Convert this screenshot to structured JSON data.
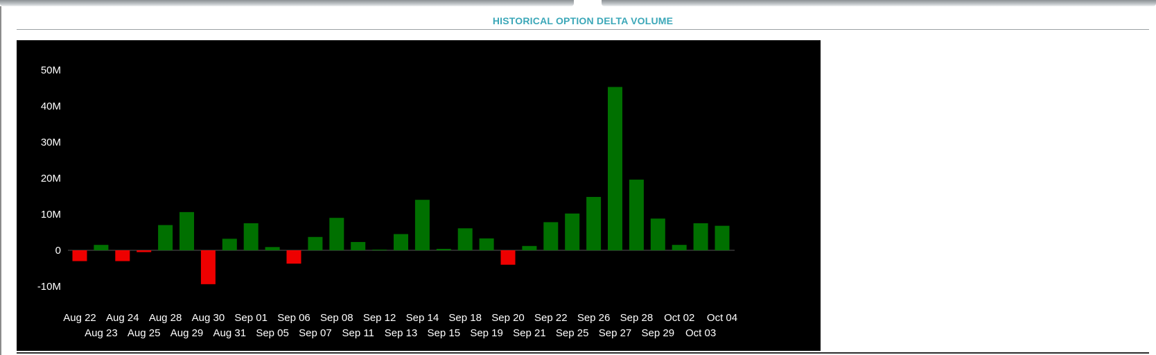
{
  "header": {
    "title": "HISTORICAL OPTION DELTA VOLUME"
  },
  "colors": {
    "positive": "#007000",
    "negative": "#ee0000",
    "background": "#000000",
    "title": "#3ba7b8"
  },
  "chart_data": {
    "type": "bar",
    "title": "",
    "xlabel": "",
    "ylabel": "",
    "ylim": [
      -10,
      50
    ],
    "yticks": [
      -10,
      0,
      10,
      20,
      30,
      40,
      50
    ],
    "ytick_labels": [
      "-10M",
      "0",
      "10M",
      "20M",
      "30M",
      "40M",
      "50M"
    ],
    "grid": false,
    "legend": "none",
    "categories": [
      "Aug 22",
      "Aug 23",
      "Aug 24",
      "Aug 25",
      "Aug 28",
      "Aug 29",
      "Aug 30",
      "Aug 31",
      "Sep 01",
      "Sep 05",
      "Sep 06",
      "Sep 07",
      "Sep 08",
      "Sep 11",
      "Sep 12",
      "Sep 13",
      "Sep 14",
      "Sep 15",
      "Sep 18",
      "Sep 19",
      "Sep 20",
      "Sep 21",
      "Sep 22",
      "Sep 25",
      "Sep 26",
      "Sep 27",
      "Sep 28",
      "Sep 29",
      "Oct 02",
      "Oct 03",
      "Oct 04"
    ],
    "values": [
      -3.0,
      1.5,
      -3.0,
      -0.5,
      7.0,
      10.6,
      -9.4,
      3.2,
      7.5,
      0.9,
      -3.7,
      3.7,
      9.0,
      2.3,
      0.2,
      4.5,
      14.0,
      0.4,
      6.1,
      3.3,
      -4.0,
      1.2,
      7.8,
      10.2,
      14.8,
      45.3,
      19.6,
      8.8,
      1.5,
      7.5,
      6.8
    ]
  }
}
